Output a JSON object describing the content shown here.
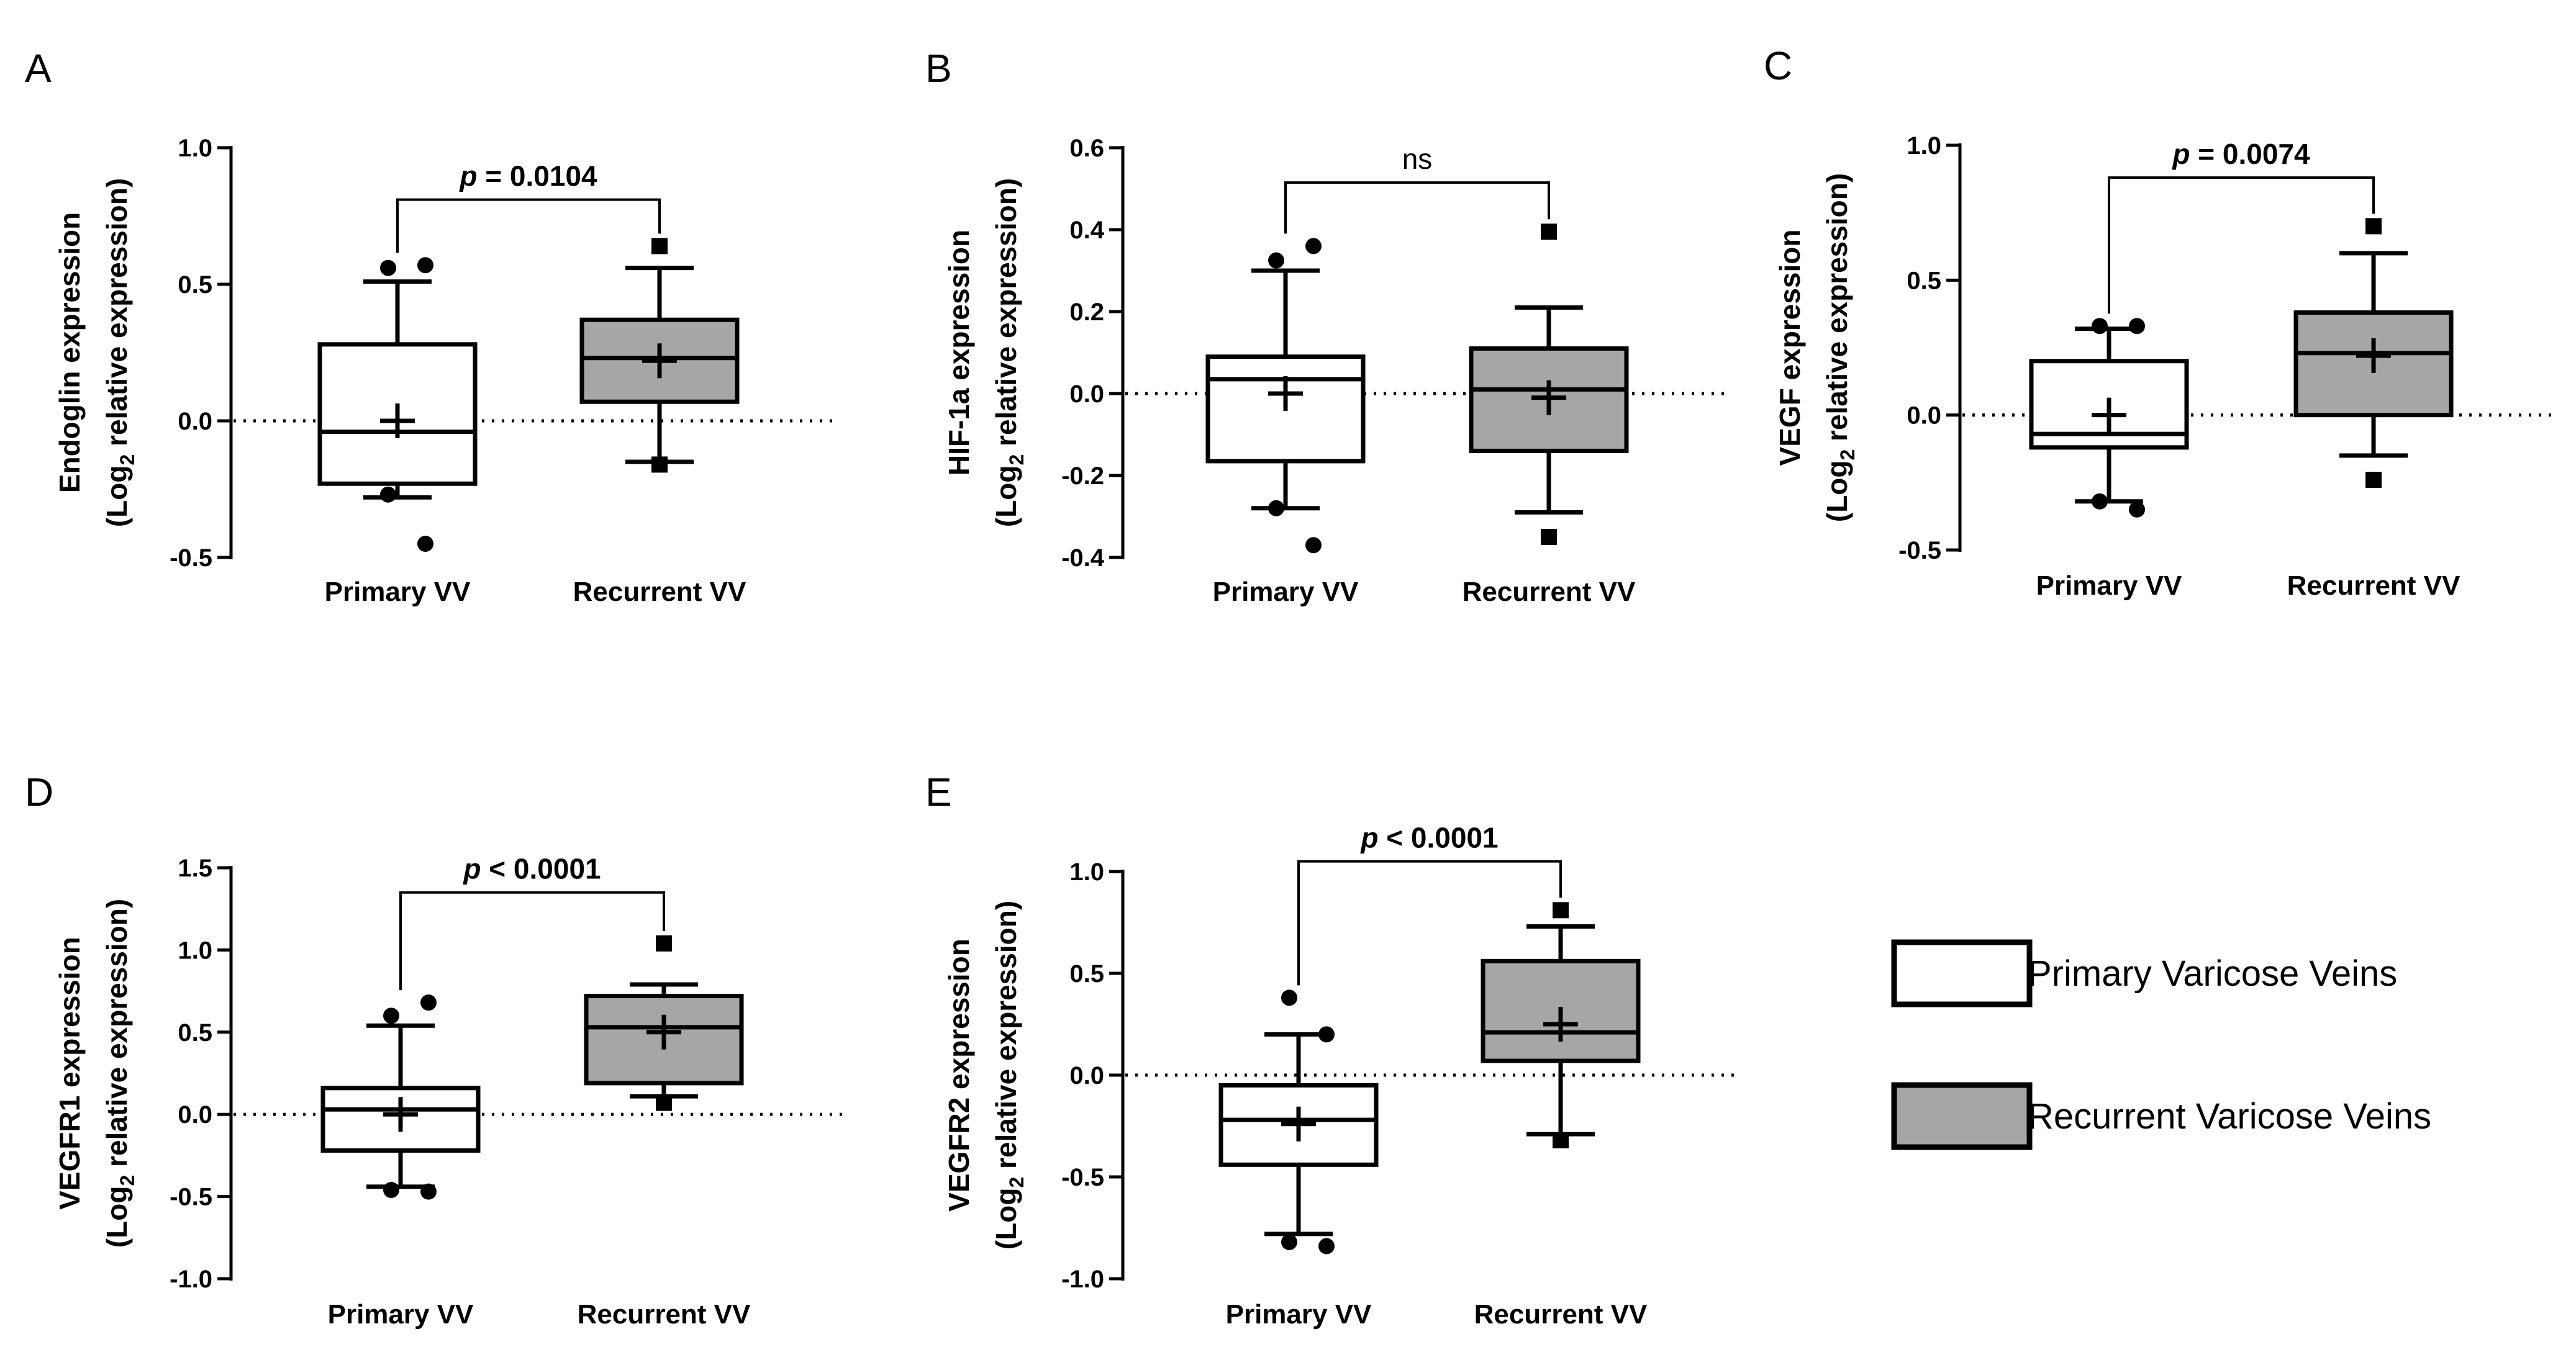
{
  "legend": {
    "items": [
      {
        "label": "Primary Varicose Veins",
        "color": "#ffffff"
      },
      {
        "label": "Recurrent Varicose Veins",
        "color": "#a6a6a8"
      }
    ]
  },
  "chart_data": [
    {
      "type": "box",
      "panel": "A",
      "categories": [
        "Primary VV",
        "Recurrent VV"
      ],
      "ylabel_line1": "Endoglin expression",
      "ylabel_line2_pre": "(Log",
      "ylabel_line2_sub": "2",
      "ylabel_line2_post": " relative expression)",
      "ylim": [
        -0.5,
        1.0
      ],
      "yticks": [
        -0.5,
        0.0,
        0.5,
        1.0
      ],
      "ytick_labels": [
        "-0.5",
        "0.0",
        "0.5",
        "1.0"
      ],
      "significance": {
        "text": "= 0.0104",
        "p_prefix": "p",
        "bracket_y": 0.81
      },
      "boxes": [
        {
          "category": "Primary VV",
          "color": "#ffffff",
          "q1": -0.23,
          "median": -0.04,
          "q3": 0.28,
          "whisker_low": -0.28,
          "whisker_high": 0.51,
          "mean": 0.0,
          "outliers": [
            0.56,
            0.57,
            -0.27,
            -0.45
          ],
          "marker": "circle"
        },
        {
          "category": "Recurrent VV",
          "color": "#a6a6a8",
          "q1": 0.07,
          "median": 0.23,
          "q3": 0.37,
          "whisker_low": -0.15,
          "whisker_high": 0.56,
          "mean": 0.22,
          "outliers": [
            0.64,
            -0.16
          ],
          "marker": "square"
        }
      ]
    },
    {
      "type": "box",
      "panel": "B",
      "categories": [
        "Primary VV",
        "Recurrent VV"
      ],
      "ylabel_line1": "HIF-1a expression",
      "ylabel_line2_pre": "(Log",
      "ylabel_line2_sub": "2",
      "ylabel_line2_post": " relative expression)",
      "ylim": [
        -0.4,
        0.6
      ],
      "yticks": [
        -0.4,
        -0.2,
        0.0,
        0.2,
        0.4,
        0.6
      ],
      "ytick_labels": [
        "-0.4",
        "-0.2",
        "0.0",
        "0.2",
        "0.4",
        "0.6"
      ],
      "significance": {
        "text": "ns",
        "p_prefix": "",
        "bracket_y": 0.515
      },
      "boxes": [
        {
          "category": "Primary VV",
          "color": "#ffffff",
          "q1": -0.165,
          "median": 0.035,
          "q3": 0.09,
          "whisker_low": -0.28,
          "whisker_high": 0.3,
          "mean": 0.0,
          "outliers": [
            0.325,
            0.36,
            -0.28,
            -0.37
          ],
          "marker": "circle"
        },
        {
          "category": "Recurrent VV",
          "color": "#a6a6a8",
          "q1": -0.14,
          "median": 0.01,
          "q3": 0.11,
          "whisker_low": -0.29,
          "whisker_high": 0.21,
          "mean": -0.01,
          "outliers": [
            0.395,
            -0.35
          ],
          "marker": "square"
        }
      ]
    },
    {
      "type": "box",
      "panel": "C",
      "categories": [
        "Primary VV",
        "Recurrent VV"
      ],
      "ylabel_line1": "VEGF expression",
      "ylabel_line2_pre": "(Log",
      "ylabel_line2_sub": "2",
      "ylabel_line2_post": " relative expression)",
      "ylim": [
        -0.5,
        1.0
      ],
      "yticks": [
        -0.5,
        0.0,
        0.5,
        1.0
      ],
      "ytick_labels": [
        "-0.5",
        "0.0",
        "0.5",
        "1.0"
      ],
      "significance": {
        "text": "= 0.0074",
        "p_prefix": "p",
        "bracket_y": 0.88
      },
      "boxes": [
        {
          "category": "Primary VV",
          "color": "#ffffff",
          "q1": -0.12,
          "median": -0.07,
          "q3": 0.2,
          "whisker_low": -0.32,
          "whisker_high": 0.32,
          "mean": 0.0,
          "outliers": [
            0.33,
            0.33,
            -0.32,
            -0.35
          ],
          "marker": "circle"
        },
        {
          "category": "Recurrent VV",
          "color": "#a6a6a8",
          "q1": 0.0,
          "median": 0.23,
          "q3": 0.38,
          "whisker_low": -0.15,
          "whisker_high": 0.6,
          "mean": 0.22,
          "outliers": [
            0.7,
            -0.24
          ],
          "marker": "square"
        }
      ]
    },
    {
      "type": "box",
      "panel": "D",
      "categories": [
        "Primary VV",
        "Recurrent VV"
      ],
      "ylabel_line1": "VEGFR1 expression",
      "ylabel_line2_pre": "(Log",
      "ylabel_line2_sub": "2",
      "ylabel_line2_post": " relative expression)",
      "ylim": [
        -1.0,
        1.5
      ],
      "yticks": [
        -1.0,
        -0.5,
        0.0,
        0.5,
        1.0,
        1.5
      ],
      "ytick_labels": [
        "-1.0",
        "-0.5",
        "0.0",
        "0.5",
        "1.0",
        "1.5"
      ],
      "significance": {
        "text": "< 0.0001",
        "p_prefix": "p",
        "bracket_y": 1.35
      },
      "boxes": [
        {
          "category": "Primary VV",
          "color": "#ffffff",
          "q1": -0.22,
          "median": 0.03,
          "q3": 0.16,
          "whisker_low": -0.44,
          "whisker_high": 0.54,
          "mean": 0.0,
          "outliers": [
            0.6,
            0.68,
            -0.46,
            -0.47
          ],
          "marker": "circle"
        },
        {
          "category": "Recurrent VV",
          "color": "#a6a6a8",
          "q1": 0.19,
          "median": 0.53,
          "q3": 0.72,
          "whisker_low": 0.11,
          "whisker_high": 0.79,
          "mean": 0.5,
          "outliers": [
            1.04,
            0.07
          ],
          "marker": "square"
        }
      ]
    },
    {
      "type": "box",
      "panel": "E",
      "categories": [
        "Primary VV",
        "Recurrent VV"
      ],
      "ylabel_line1": "VEGFR2 expression",
      "ylabel_line2_pre": "(Log",
      "ylabel_line2_sub": "2",
      "ylabel_line2_post": " relative expression)",
      "ylim": [
        -1.0,
        1.0
      ],
      "yticks": [
        -1.0,
        -0.5,
        0.0,
        0.5,
        1.0
      ],
      "ytick_labels": [
        "-1.0",
        "-0.5",
        "0.0",
        "0.5",
        "1.0"
      ],
      "significance": {
        "text": "< 0.0001",
        "p_prefix": "p",
        "bracket_y": 1.05
      },
      "boxes": [
        {
          "category": "Primary VV",
          "color": "#ffffff",
          "q1": -0.44,
          "median": -0.22,
          "q3": -0.05,
          "whisker_low": -0.78,
          "whisker_high": 0.2,
          "mean": -0.24,
          "outliers": [
            0.38,
            0.2,
            -0.82,
            -0.84
          ],
          "marker": "circle"
        },
        {
          "category": "Recurrent VV",
          "color": "#a6a6a8",
          "q1": 0.07,
          "median": 0.21,
          "q3": 0.56,
          "whisker_low": -0.29,
          "whisker_high": 0.73,
          "mean": 0.25,
          "outliers": [
            0.81,
            -0.32
          ],
          "marker": "square"
        }
      ]
    }
  ]
}
